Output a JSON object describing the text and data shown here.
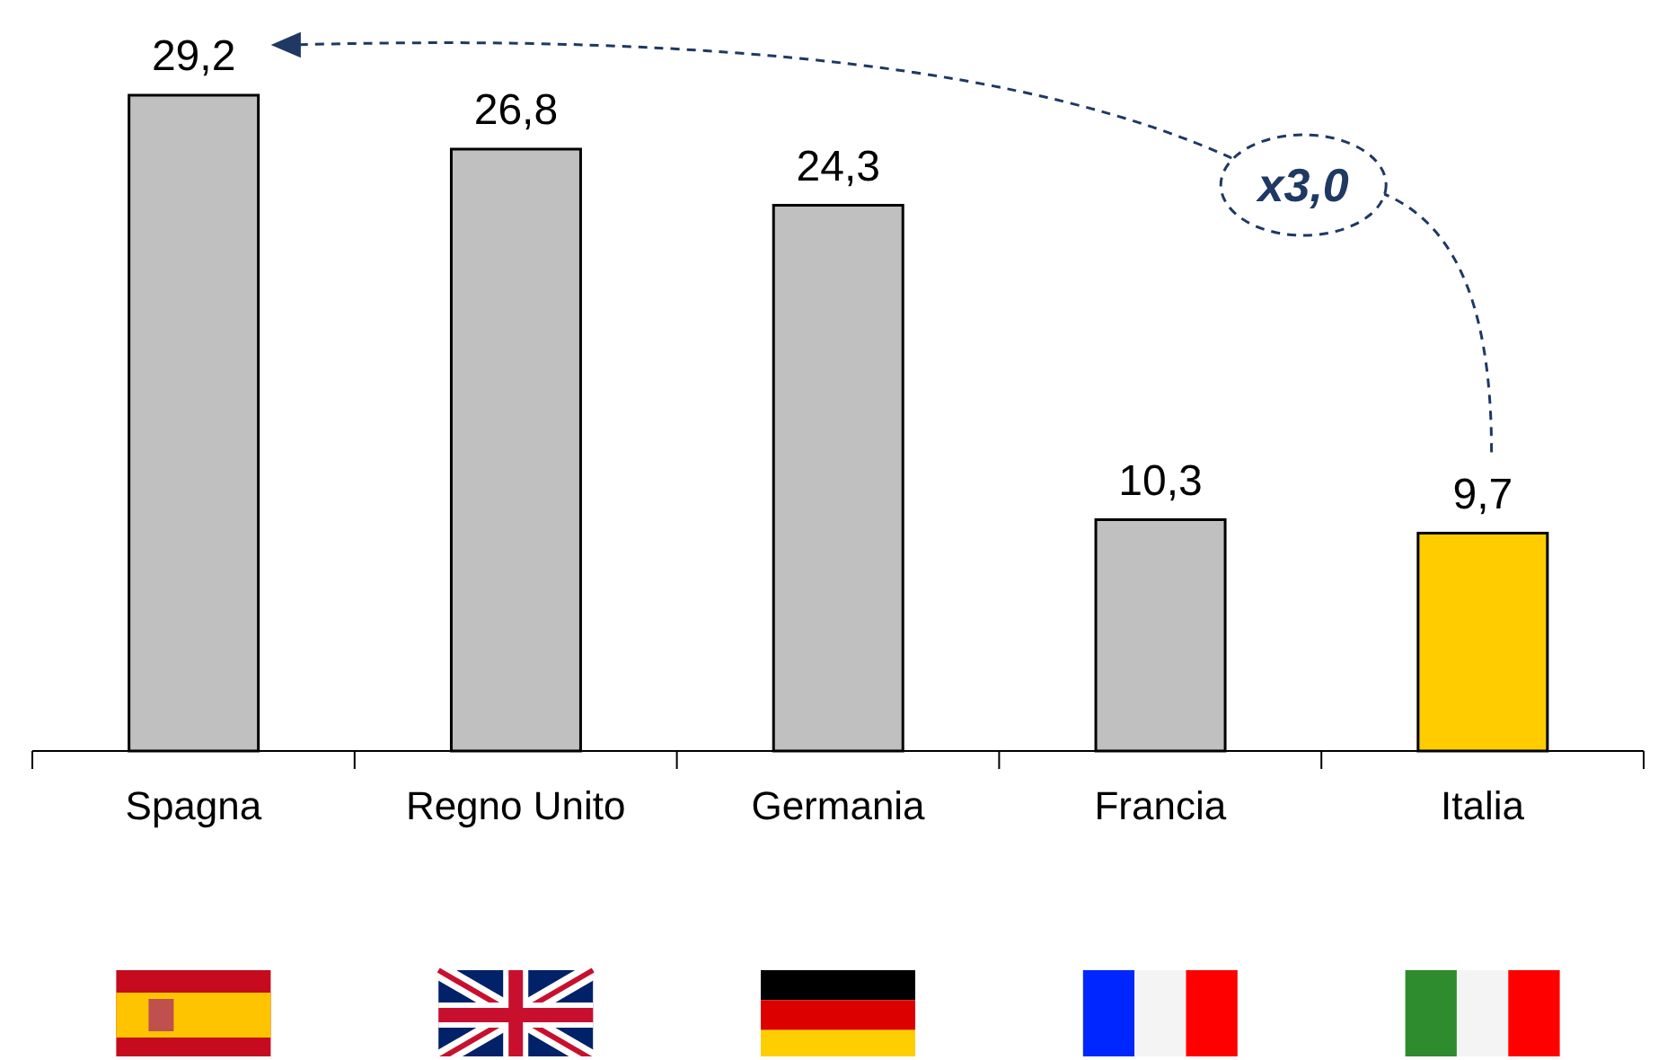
{
  "chart_data": {
    "type": "bar",
    "categories": [
      "Spagna",
      "Regno Unito",
      "Germania",
      "Francia",
      "Italia"
    ],
    "values": [
      29.2,
      26.8,
      24.3,
      10.3,
      9.7
    ],
    "colors": [
      "#c0c0c0",
      "#c0c0c0",
      "#c0c0c0",
      "#c0c0c0",
      "#ffcc00"
    ],
    "value_labels": [
      "29,2",
      "26,8",
      "24,3",
      "10,3",
      "9,7"
    ],
    "tick_labels": "x",
    "annotations": [
      "x3,0"
    ]
  }
}
